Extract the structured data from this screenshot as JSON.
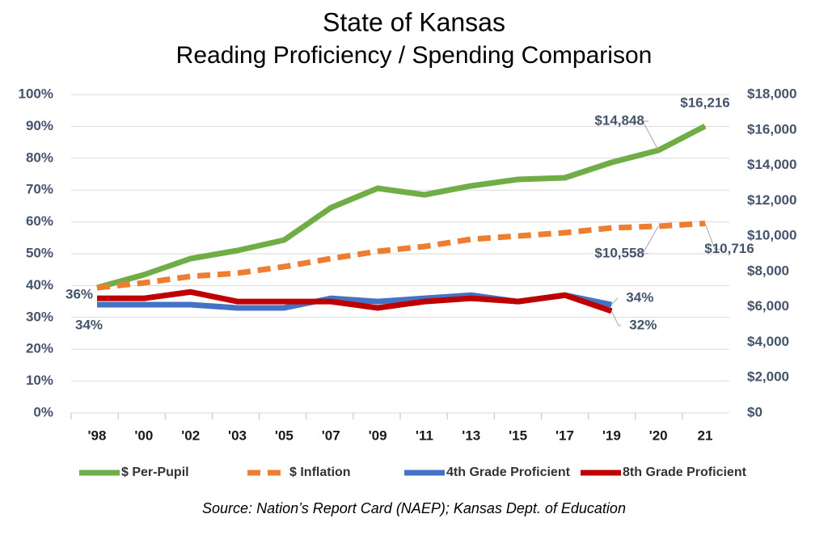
{
  "chart_data": {
    "type": "line",
    "title": "State of Kansas",
    "subtitle": "Reading Proficiency / Spending Comparison",
    "source": "Source: Nation’s Report Card (NAEP); Kansas Dept. of Education",
    "categories": [
      "'98",
      "'00",
      "'02",
      "'03",
      "'05",
      "'07",
      "'09",
      "'11",
      "'13",
      "'15",
      "'17",
      "'19",
      "'20",
      "21"
    ],
    "ylim": [
      0,
      100
    ],
    "yticks": [
      {
        "value": 0,
        "label": "0%"
      },
      {
        "value": 10,
        "label": "10%"
      },
      {
        "value": 20,
        "label": "20%"
      },
      {
        "value": 30,
        "label": "30%"
      },
      {
        "value": 40,
        "label": "40%"
      },
      {
        "value": 50,
        "label": "50%"
      },
      {
        "value": 60,
        "label": "60%"
      },
      {
        "value": 70,
        "label": "70%"
      },
      {
        "value": 80,
        "label": "80%"
      },
      {
        "value": 90,
        "label": "90%"
      },
      {
        "value": 100,
        "label": "100%"
      }
    ],
    "y2lim": [
      0,
      18000
    ],
    "y2ticks": [
      {
        "value": 0,
        "label": "$0"
      },
      {
        "value": 2000,
        "label": "$2,000"
      },
      {
        "value": 4000,
        "label": "$4,000"
      },
      {
        "value": 6000,
        "label": "$6,000"
      },
      {
        "value": 8000,
        "label": "$8,000"
      },
      {
        "value": 10000,
        "label": "$10,000"
      },
      {
        "value": 12000,
        "label": "$12,000"
      },
      {
        "value": 14000,
        "label": "$14,000"
      },
      {
        "value": 16000,
        "label": "$16,000"
      },
      {
        "value": 18000,
        "label": "$18,000"
      }
    ],
    "grid": true,
    "legend": "bottom",
    "series": [
      {
        "name": "$ Per-Pupil",
        "color": "#70ad47",
        "axis": "y2",
        "dashed": false,
        "values": [
          7081,
          7812,
          8726,
          9183,
          9777,
          11604,
          12700,
          12335,
          12838,
          13203,
          13294,
          14162,
          14848,
          16216
        ],
        "value_labels": [
          null,
          null,
          null,
          null,
          null,
          null,
          null,
          null,
          null,
          null,
          null,
          null,
          "$14,848",
          "$16,216"
        ]
      },
      {
        "name": "$ Inflation",
        "color": "#ed7d31",
        "axis": "y2",
        "dashed": true,
        "values": [
          7081,
          7355,
          7721,
          7903,
          8269,
          8726,
          9137,
          9411,
          9822,
          10005,
          10188,
          10462,
          10558,
          10716
        ],
        "value_labels": [
          null,
          null,
          null,
          null,
          null,
          null,
          null,
          null,
          null,
          null,
          null,
          null,
          "$10,558",
          "$10,716"
        ]
      },
      {
        "name": "4th Grade Proficient",
        "color": "#4472c4",
        "axis": "y",
        "dashed": false,
        "values": [
          34,
          34,
          34,
          33,
          33,
          36,
          35,
          36,
          37,
          35,
          37,
          34,
          null,
          null
        ],
        "value_labels": [
          "34%",
          null,
          null,
          null,
          null,
          null,
          null,
          null,
          null,
          null,
          null,
          "34%",
          null,
          null
        ]
      },
      {
        "name": "8th Grade Proficient",
        "color": "#c00000",
        "axis": "y",
        "dashed": false,
        "values": [
          36,
          36,
          38,
          35,
          35,
          35,
          33,
          35,
          36,
          35,
          37,
          32,
          null,
          null
        ],
        "value_labels": [
          "36%",
          null,
          null,
          null,
          null,
          null,
          null,
          null,
          null,
          null,
          null,
          "32%",
          null,
          null
        ]
      }
    ]
  }
}
